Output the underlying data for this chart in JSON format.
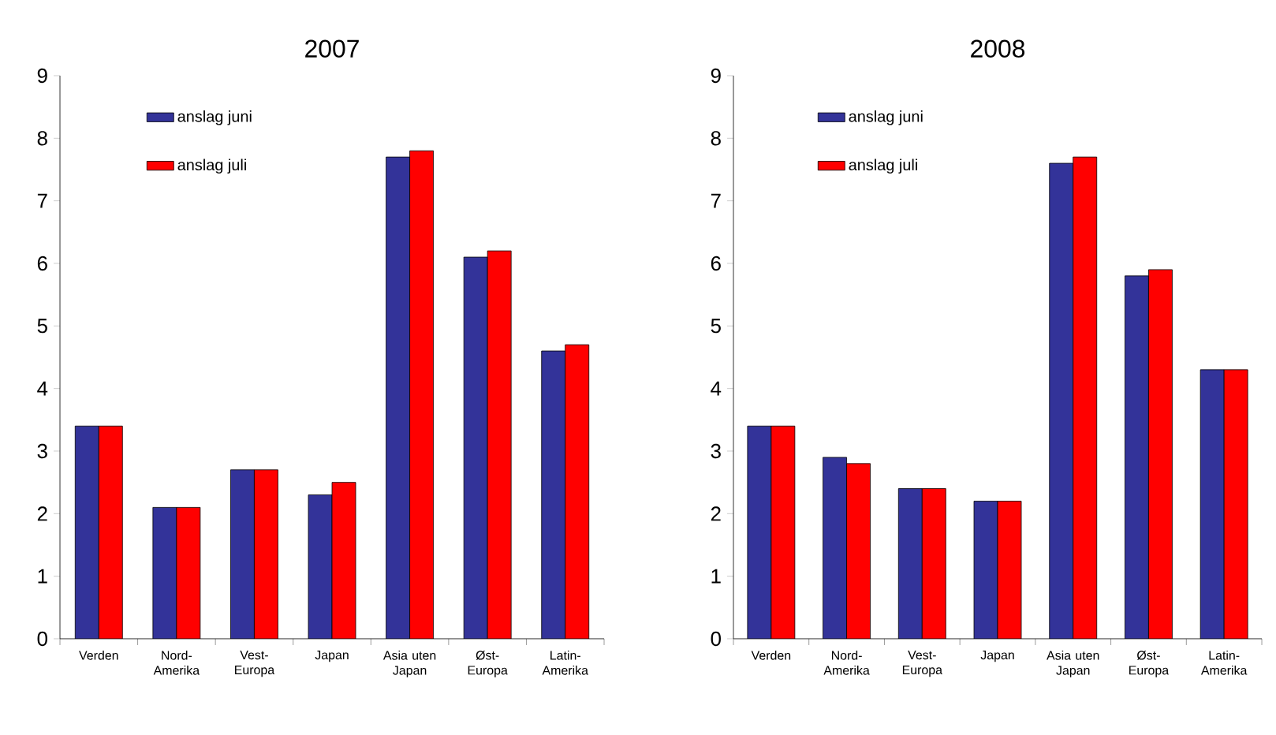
{
  "chart_data": [
    {
      "type": "bar",
      "title": "2007",
      "categories": [
        "Verden",
        "Nord-Amerika",
        "Vest-Europa",
        "Japan",
        "Asia uten Japan",
        "Øst-Europa",
        "Latin-Amerika"
      ],
      "series": [
        {
          "name": "anslag juni",
          "color": "#333399",
          "values": [
            3.4,
            2.1,
            2.7,
            2.3,
            7.7,
            6.1,
            4.6
          ]
        },
        {
          "name": "anslag juli",
          "color": "#ff0000",
          "values": [
            3.4,
            2.1,
            2.7,
            2.5,
            7.8,
            6.2,
            4.7
          ]
        }
      ],
      "ylim": [
        0,
        9
      ],
      "yticks": [
        0,
        1,
        2,
        3,
        4,
        5,
        6,
        7,
        8,
        9
      ],
      "legend": "top left"
    },
    {
      "type": "bar",
      "title": "2008",
      "categories": [
        "Verden",
        "Nord-Amerika",
        "Vest-Europa",
        "Japan",
        "Asia uten Japan",
        "Øst-Europa",
        "Latin-Amerika"
      ],
      "series": [
        {
          "name": "anslag juni",
          "color": "#333399",
          "values": [
            3.4,
            2.9,
            2.4,
            2.2,
            7.6,
            5.8,
            4.3
          ]
        },
        {
          "name": "anslag juli",
          "color": "#ff0000",
          "values": [
            3.4,
            2.8,
            2.4,
            2.2,
            7.7,
            5.9,
            4.3
          ]
        }
      ],
      "ylim": [
        0,
        9
      ],
      "yticks": [
        0,
        1,
        2,
        3,
        4,
        5,
        6,
        7,
        8,
        9
      ],
      "legend": "top left"
    }
  ]
}
